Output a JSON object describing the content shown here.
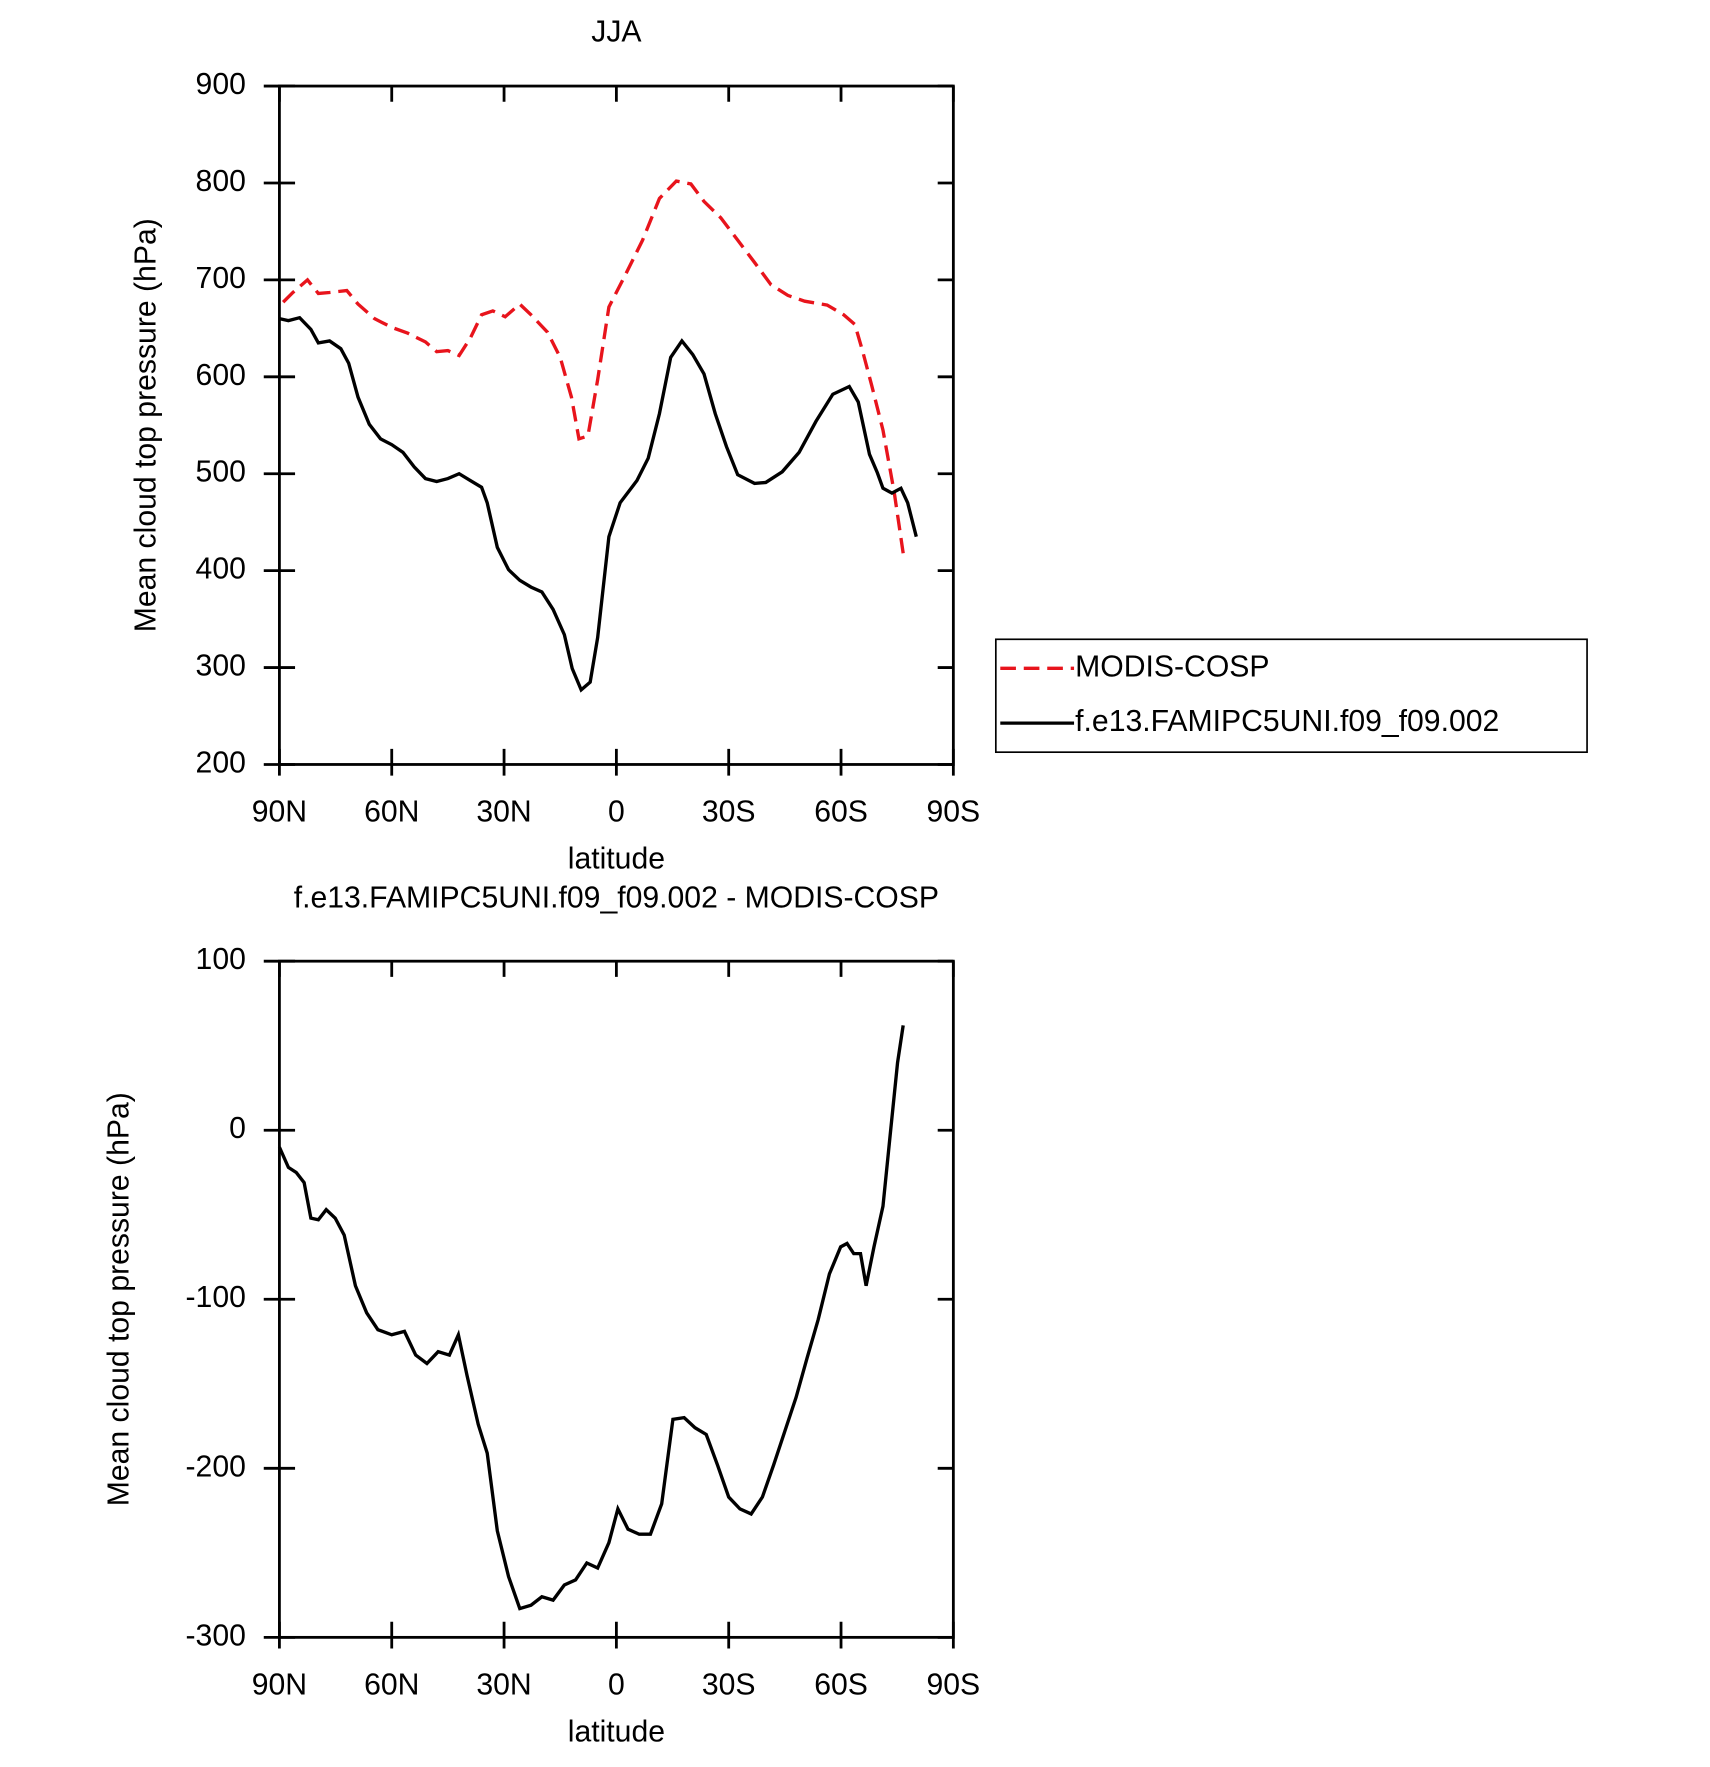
{
  "chart_data": [
    {
      "type": "line",
      "title": "JJA",
      "x_label": "latitude",
      "y_label": "Mean cloud top pressure (hPa)",
      "xlim": [
        90,
        -90
      ],
      "xticks": [
        {
          "value": 90,
          "label": "90N"
        },
        {
          "value": 60,
          "label": "60N"
        },
        {
          "value": 30,
          "label": "30N"
        },
        0,
        {
          "value": -30,
          "label": "30S"
        },
        {
          "value": -60,
          "label": "60S"
        },
        {
          "value": -90,
          "label": "90S"
        }
      ],
      "ylim": [
        200,
        900
      ],
      "yticks": [
        200,
        300,
        400,
        500,
        600,
        700,
        800,
        900
      ],
      "legend": "right",
      "series": [
        {
          "name": "MODIS-COSP",
          "color": "#e8141c",
          "dash": "dashed",
          "x": [
            89,
            86.4,
            82.5,
            79.6,
            76.6,
            72,
            69,
            64.6,
            60,
            55.7,
            51,
            48,
            45,
            42,
            39,
            36,
            33,
            29.7,
            25.8,
            22.8,
            18.4,
            15,
            12,
            10,
            7.6,
            5,
            2,
            -2.5,
            -7,
            -11.5,
            -16,
            -19.9,
            -23.4,
            -27.9,
            -32.4,
            -36.9,
            -41.3,
            -45.8,
            -50.3,
            -56.3,
            -60.7,
            -63.7,
            -65.8,
            -68.2,
            -71.2,
            -74.2,
            -76.6
          ],
          "values": [
            677,
            687,
            700,
            686,
            687,
            689,
            675,
            660,
            651,
            645,
            636,
            626,
            627,
            622,
            640,
            664,
            668,
            662,
            675,
            664,
            646,
            620,
            579,
            536,
            539,
            597,
            672,
            706,
            741,
            784,
            802,
            799,
            781,
            764,
            741,
            718,
            695,
            684,
            678,
            674,
            664,
            654,
            626,
            591,
            545,
            481,
            418
          ]
        },
        {
          "name": "f.e13.FAMIPC5UNI.f09_f09.002",
          "color": "#000000",
          "dash": "solid",
          "x": [
            90,
            87.6,
            84.6,
            81.6,
            79.6,
            76.6,
            73.6,
            71.5,
            69,
            66,
            63,
            60,
            57,
            54,
            51,
            48,
            45,
            42,
            39,
            36,
            34.5,
            31.8,
            28.8,
            25.8,
            22.8,
            19.9,
            16.9,
            13.9,
            11.8,
            9.4,
            7,
            5,
            2,
            -1,
            -5.5,
            -8.5,
            -11.5,
            -14.5,
            -17.5,
            -20.4,
            -23.4,
            -26.4,
            -29.4,
            -32.4,
            -36.9,
            -39.9,
            -44.3,
            -48.8,
            -53.3,
            -57.8,
            -62.2,
            -64.6,
            -67.6,
            -69.7,
            -71.2,
            -73.6,
            -76,
            -77.8,
            -80.1
          ],
          "values": [
            660,
            658,
            661,
            649,
            635,
            637,
            629,
            614,
            579,
            551,
            536,
            530,
            522,
            507,
            495,
            492,
            495,
            500,
            493,
            486,
            470,
            424,
            401,
            390,
            383,
            378,
            360,
            334,
            299,
            277,
            285,
            331,
            435,
            470,
            493,
            516,
            562,
            620,
            637,
            623,
            603,
            562,
            528,
            499,
            490,
            491,
            502,
            522,
            554,
            582,
            590,
            574,
            520,
            501,
            485,
            480,
            485,
            470,
            435
          ]
        }
      ]
    },
    {
      "type": "line",
      "title": "f.e13.FAMIPC5UNI.f09_f09.002 - MODIS-COSP",
      "x_label": "latitude",
      "y_label": "Mean cloud top pressure (hPa)",
      "xlim": [
        90,
        -90
      ],
      "xticks": [
        {
          "value": 90,
          "label": "90N"
        },
        {
          "value": 60,
          "label": "60N"
        },
        {
          "value": 30,
          "label": "30N"
        },
        0,
        {
          "value": -30,
          "label": "30S"
        },
        {
          "value": -60,
          "label": "60S"
        },
        {
          "value": -90,
          "label": "90S"
        }
      ],
      "ylim": [
        -300,
        100
      ],
      "yticks": [
        -300,
        -200,
        -100,
        0,
        100
      ],
      "series": [
        {
          "color": "#000000",
          "dash": "solid",
          "x": [
            90,
            87.6,
            85.5,
            83.4,
            81.6,
            79.6,
            77.5,
            75.1,
            72.7,
            69.7,
            66.7,
            63.7,
            60,
            56.6,
            53.6,
            50.6,
            47.6,
            44.6,
            42.2,
            39.9,
            36.9,
            34.5,
            31.8,
            28.8,
            25.8,
            22.8,
            19.9,
            16.9,
            13.9,
            10.9,
            7.9,
            5,
            2,
            -0.4,
            -3.1,
            -6.1,
            -9.1,
            -12.1,
            -15.1,
            -18.1,
            -21,
            -24,
            -27,
            -30,
            -33,
            -36,
            -39,
            -42,
            -45,
            -48,
            -50.9,
            -53.9,
            -56.9,
            -59.9,
            -61.6,
            -63.4,
            -65.2,
            -66.7,
            -68.8,
            -71.2,
            -73.3,
            -75.1,
            -76.6
          ],
          "values": [
            -10,
            -22,
            -25,
            -31,
            -52,
            -53,
            -47,
            -52,
            -62,
            -92,
            -108,
            -118,
            -121,
            -119,
            -133,
            -138,
            -131,
            -133,
            -121,
            -145,
            -174,
            -191,
            -237,
            -264,
            -283,
            -281,
            -276,
            -278,
            -269,
            -266,
            -256,
            -259,
            -244,
            -224,
            -236,
            -239,
            -239,
            -221,
            -171,
            -170,
            -176,
            -180,
            -198,
            -217,
            -224,
            -227,
            -217,
            -198,
            -178,
            -158,
            -135,
            -112,
            -85,
            -69,
            -67,
            -73,
            -73,
            -92,
            -69,
            -45,
            1,
            40,
            62
          ]
        }
      ]
    }
  ]
}
